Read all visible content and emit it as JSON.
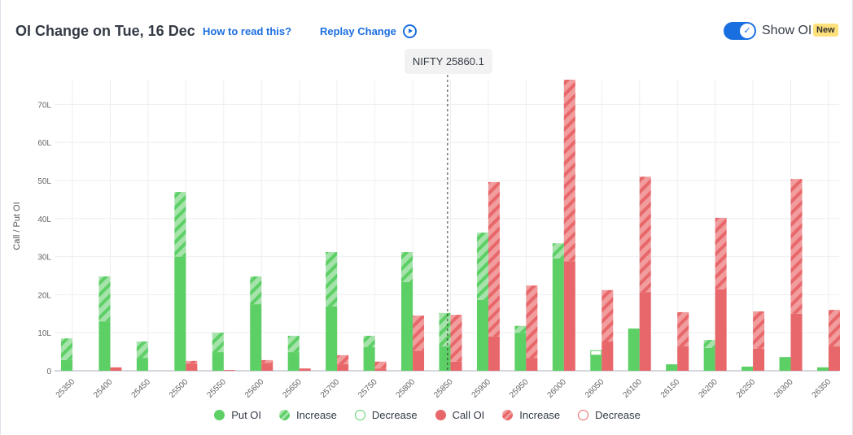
{
  "header": {
    "title": "OI Change on Tue, 16 Dec",
    "how_to": "How to read this?",
    "replay": "Replay Change",
    "show_oi": "Show OI",
    "new_badge": "New",
    "show_oi_on": true
  },
  "colors": {
    "put": "#5ccf65",
    "put_light": "#a6e3ab",
    "call": "#e8676a",
    "call_light": "#f19c9d",
    "link": "#1c6fe0"
  },
  "legend": [
    {
      "label": "Put OI",
      "style": "put-solid"
    },
    {
      "label": "Increase",
      "style": "put-hatch"
    },
    {
      "label": "Decrease",
      "style": "put-outline"
    },
    {
      "label": "Call OI",
      "style": "call-solid"
    },
    {
      "label": "Increase",
      "style": "call-hatch"
    },
    {
      "label": "Decrease",
      "style": "call-outline"
    }
  ],
  "chart_data": {
    "type": "bar",
    "ylabel": "Call / Put OI",
    "ylim": [
      0,
      76.5
    ],
    "yticks": [
      "0",
      "10L",
      "20L",
      "30L",
      "40L",
      "50L",
      "60L",
      "70L"
    ],
    "spot": {
      "label": "NIFTY 25860.1",
      "value": 25860.1
    },
    "categories": [
      "25350",
      "25400",
      "25450",
      "25500",
      "25550",
      "25600",
      "25650",
      "25700",
      "25750",
      "25800",
      "25850",
      "25900",
      "25950",
      "26000",
      "26050",
      "26100",
      "26150",
      "26200",
      "26250",
      "26300",
      "26350"
    ],
    "put_oi": [
      2.8,
      13,
      3.4,
      30,
      4.9,
      17.5,
      4.9,
      16.9,
      6.2,
      23.3,
      6.4,
      18.6,
      10,
      29.5,
      4.1,
      11.1,
      1.7,
      6,
      1.1,
      3.6,
      0.9
    ],
    "put_change": [
      5.7,
      11.8,
      4.3,
      17,
      5.1,
      7.3,
      4.3,
      14.3,
      3,
      7.9,
      8.8,
      17.7,
      1.8,
      4,
      -1.2,
      0,
      0,
      2.1,
      0,
      0,
      0
    ],
    "call_oi": [
      0,
      0.9,
      0,
      1.9,
      0.2,
      2.1,
      0.6,
      1.7,
      0.6,
      5.3,
      2.4,
      9,
      3.4,
      28.8,
      7.7,
      20.7,
      6.4,
      21.4,
      5.8,
      15,
      6.4
    ],
    "call_change": [
      0,
      0,
      0,
      0.7,
      0,
      0.7,
      0,
      2.4,
      1.8,
      9.2,
      12.3,
      40.6,
      19,
      47.7,
      13.5,
      30.3,
      9,
      18.8,
      9.8,
      35.4,
      9.6
    ]
  }
}
